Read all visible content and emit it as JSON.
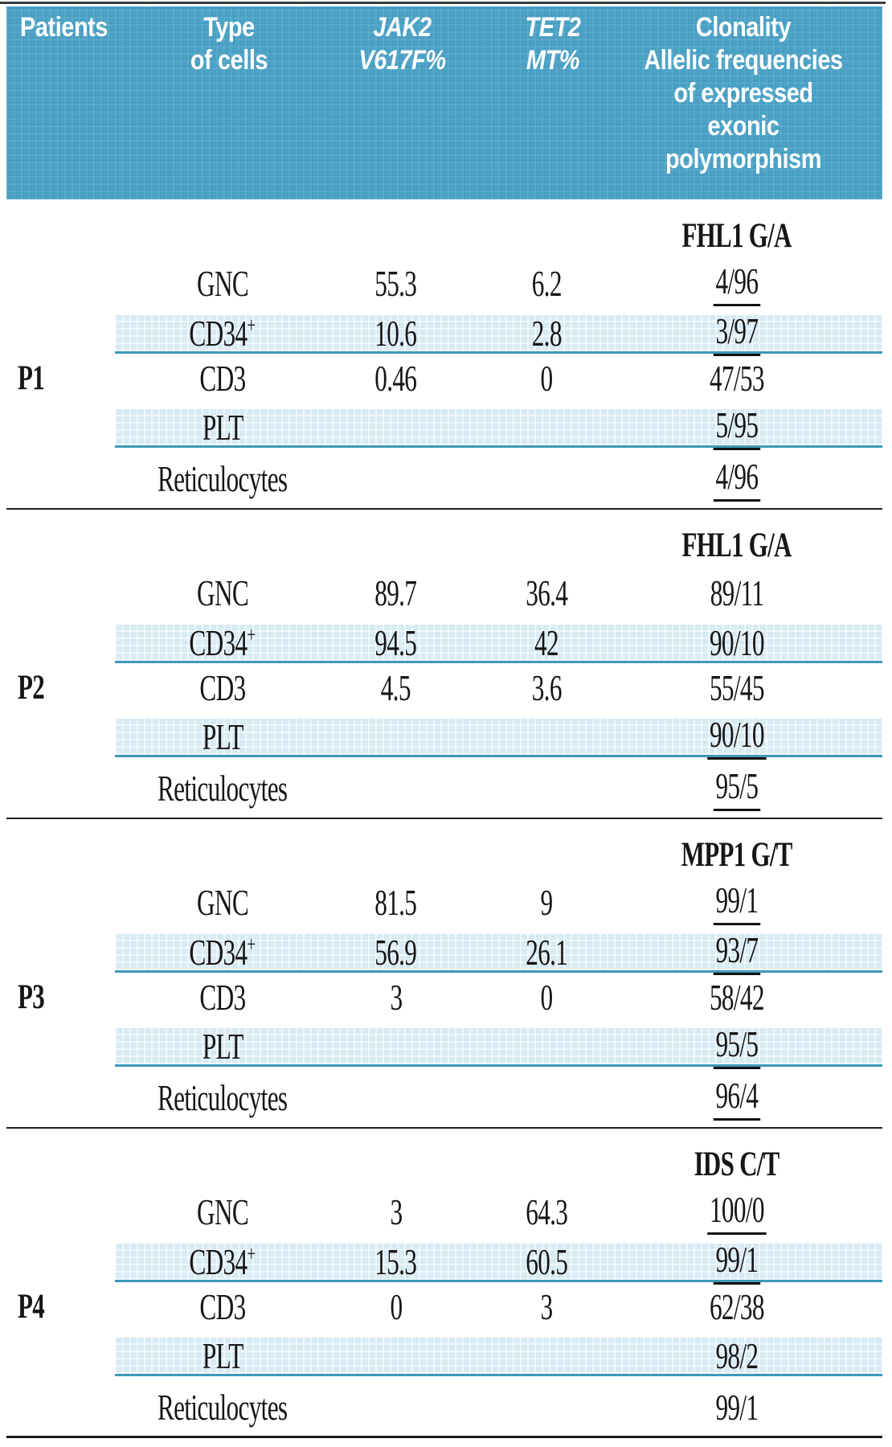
{
  "header": {
    "patients": "Patients",
    "type_line1": "Type",
    "type_line2": "of cells",
    "jak2_line1": "JAK2",
    "jak2_line2": "V617F%",
    "tet2_line1": "TET2",
    "tet2_line2": "MT%",
    "clonality_lines": [
      "Clonality",
      "Allelic frequencies",
      "of expressed",
      "exonic",
      "polymorphism"
    ]
  },
  "colors": {
    "header_bg": "#4aa2c6",
    "stripe_bg": "#d8eaf4",
    "stripe_border": "#3e98bb",
    "text": "#161616"
  },
  "groups": [
    {
      "patient": "P1",
      "gene": "FHL1 G/A",
      "rows": [
        {
          "cell": "GNC",
          "cell_sup": "",
          "jak2": "55.3",
          "tet2": "6.2",
          "clonality": "4/96",
          "underlined": true,
          "striped": false
        },
        {
          "cell": "CD34",
          "cell_sup": "+",
          "jak2": "10.6",
          "tet2": "2.8",
          "clonality": "3/97",
          "underlined": true,
          "striped": true
        },
        {
          "cell": "CD3",
          "cell_sup": "",
          "jak2": "0.46",
          "tet2": "0",
          "clonality": "47/53",
          "underlined": false,
          "striped": false
        },
        {
          "cell": "PLT",
          "cell_sup": "",
          "jak2": "",
          "tet2": "",
          "clonality": "5/95",
          "underlined": true,
          "striped": true
        },
        {
          "cell": "Reticulocytes",
          "cell_sup": "",
          "jak2": "",
          "tet2": "",
          "clonality": "4/96",
          "underlined": true,
          "striped": false
        }
      ]
    },
    {
      "patient": "P2",
      "gene": "FHL1 G/A",
      "rows": [
        {
          "cell": "GNC",
          "cell_sup": "",
          "jak2": "89.7",
          "tet2": "36.4",
          "clonality": "89/11",
          "underlined": false,
          "striped": false
        },
        {
          "cell": "CD34",
          "cell_sup": "+",
          "jak2": "94.5",
          "tet2": "42",
          "clonality": "90/10",
          "underlined": false,
          "striped": true
        },
        {
          "cell": "CD3",
          "cell_sup": "",
          "jak2": "4.5",
          "tet2": "3.6",
          "clonality": "55/45",
          "underlined": false,
          "striped": false
        },
        {
          "cell": "PLT",
          "cell_sup": "",
          "jak2": "",
          "tet2": "",
          "clonality": "90/10",
          "underlined": true,
          "striped": true
        },
        {
          "cell": "Reticulocytes",
          "cell_sup": "",
          "jak2": "",
          "tet2": "",
          "clonality": "95/5",
          "underlined": true,
          "striped": false
        }
      ]
    },
    {
      "patient": "P3",
      "gene": "MPP1 G/T",
      "rows": [
        {
          "cell": "GNC",
          "cell_sup": "",
          "jak2": "81.5",
          "tet2": "9",
          "clonality": "99/1",
          "underlined": true,
          "striped": false
        },
        {
          "cell": "CD34",
          "cell_sup": "+",
          "jak2": "56.9",
          "tet2": "26.1",
          "clonality": "93/7",
          "underlined": true,
          "striped": true
        },
        {
          "cell": "CD3",
          "cell_sup": "",
          "jak2": "3",
          "tet2": "0",
          "clonality": "58/42",
          "underlined": false,
          "striped": false
        },
        {
          "cell": "PLT",
          "cell_sup": "",
          "jak2": "",
          "tet2": "",
          "clonality": "95/5",
          "underlined": true,
          "striped": true
        },
        {
          "cell": "Reticulocytes",
          "cell_sup": "",
          "jak2": "",
          "tet2": "",
          "clonality": "96/4",
          "underlined": true,
          "striped": false
        }
      ]
    },
    {
      "patient": "P4",
      "gene": "IDS C/T",
      "rows": [
        {
          "cell": "GNC",
          "cell_sup": "",
          "jak2": "3",
          "tet2": "64.3",
          "clonality": "100/0",
          "underlined": true,
          "striped": false
        },
        {
          "cell": "CD34",
          "cell_sup": "+",
          "jak2": "15.3",
          "tet2": "60.5",
          "clonality": "99/1",
          "underlined": true,
          "striped": true
        },
        {
          "cell": "CD3",
          "cell_sup": "",
          "jak2": "0",
          "tet2": "3",
          "clonality": "62/38",
          "underlined": false,
          "striped": false
        },
        {
          "cell": "PLT",
          "cell_sup": "",
          "jak2": "",
          "tet2": "",
          "clonality": "98/2",
          "underlined": false,
          "striped": true
        },
        {
          "cell": "Reticulocytes",
          "cell_sup": "",
          "jak2": "",
          "tet2": "",
          "clonality": "99/1",
          "underlined": false,
          "striped": false
        }
      ]
    }
  ]
}
